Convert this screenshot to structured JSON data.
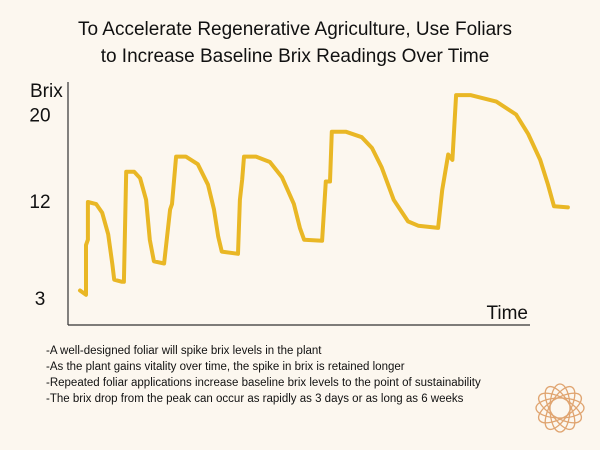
{
  "chart_data": {
    "type": "line",
    "title": [
      "To Accelerate Regenerative Agriculture, Use Foliars",
      "to Increase Baseline Brix Readings Over Time"
    ],
    "y_label": "Brix",
    "x_label": "Time",
    "ylim": [
      0.7,
      23.4
    ],
    "yticks": [
      3,
      12,
      20
    ],
    "xlim": [
      0,
      110
    ],
    "series": [
      {
        "color": "#e9b725",
        "x": [
          2.6,
          3.9,
          3.9,
          4.3,
          4.3,
          6.1,
          7.4,
          8.7,
          9.6,
          10.0,
          11.7,
          12.1,
          12.6,
          14.3,
          15.6,
          16.9,
          17.7,
          18.6,
          20.8,
          22.1,
          22.5,
          23.4,
          25.5,
          28.1,
          30.3,
          31.6,
          32.5,
          33.3,
          36.8,
          37.2,
          37.7,
          38.1,
          40.7,
          43.7,
          46.3,
          48.9,
          50.2,
          51.1,
          55.0,
          55.8,
          56.7,
          57.1,
          60.2,
          63.6,
          65.8,
          67.9,
          70.5,
          73.6,
          75.8,
          80.1,
          81.0,
          82.3,
          83.2,
          84.0,
          87.1,
          92.7,
          97.0,
          99.6,
          102.2,
          103.9,
          105.2,
          108.2
        ],
        "values": [
          3.9,
          3.5,
          8.1,
          8.6,
          12.1,
          11.9,
          11.1,
          9.1,
          6.3,
          4.9,
          4.7,
          4.7,
          14.9,
          14.9,
          14.3,
          12.3,
          8.6,
          6.6,
          6.4,
          11.4,
          11.9,
          16.3,
          16.3,
          15.6,
          13.7,
          11.4,
          8.9,
          7.5,
          7.3,
          12.3,
          14.2,
          16.3,
          16.3,
          15.8,
          14.4,
          11.9,
          9.7,
          8.6,
          8.5,
          14.0,
          14.0,
          18.6,
          18.6,
          18.1,
          17.1,
          15.3,
          12.3,
          10.3,
          9.9,
          9.7,
          13.2,
          16.5,
          16.0,
          22.0,
          22.0,
          21.4,
          20.2,
          18.4,
          16.0,
          13.7,
          11.7,
          11.6
        ]
      }
    ],
    "notes": [
      "-A well-designed foliar will spike brix levels in the plant",
      "-As the plant gains vitality over time, the spike in brix is retained longer",
      "-Repeated foliar applications increase baseline brix levels to the point of sustainability",
      "-The brix drop from the peak can occur as rapidly as 3 days or as long as 6 weeks"
    ]
  }
}
